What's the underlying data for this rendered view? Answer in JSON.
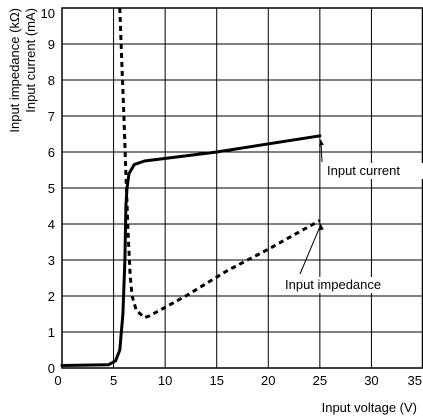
{
  "chart_data": {
    "type": "line",
    "title": "",
    "xlabel": "Input voltage (V)",
    "ylabel_lines": [
      "Input impedance (kΩ)",
      "Input current (mA)"
    ],
    "xlim": [
      0,
      35
    ],
    "ylim": [
      0,
      10
    ],
    "x_ticks": [
      "0",
      "5",
      "10",
      "15",
      "20",
      "25",
      "30",
      "35"
    ],
    "y_ticks": [
      "0",
      "1",
      "2",
      "3",
      "4",
      "5",
      "6",
      "7",
      "8",
      "9",
      "10"
    ],
    "grid": true,
    "series": [
      {
        "name": "Input current",
        "style": "solid",
        "color": "#000000",
        "x": [
          0,
          4.5,
          5.2,
          5.6,
          5.9,
          6.1,
          6.2,
          6.3,
          6.5,
          7.0,
          8.0,
          15,
          25
        ],
        "y": [
          0.07,
          0.09,
          0.2,
          0.5,
          1.5,
          3.0,
          4.5,
          5.0,
          5.4,
          5.65,
          5.75,
          6.0,
          6.45
        ]
      },
      {
        "name": "Input impedance",
        "style": "dashed",
        "color": "#000000",
        "x": [
          5.6,
          5.8,
          6.0,
          6.2,
          6.4,
          6.6,
          6.8,
          7.2,
          8.0,
          8.5,
          12,
          16,
          20,
          25
        ],
        "y": [
          10,
          8.5,
          7.0,
          5.4,
          3.8,
          2.6,
          2.0,
          1.6,
          1.4,
          1.45,
          2.0,
          2.7,
          3.3,
          4.1
        ]
      }
    ],
    "annotations": [
      {
        "text": "Input current",
        "series": "Input current",
        "point": [
          25,
          6.45
        ]
      },
      {
        "text": "Input impedance",
        "series": "Input impedance",
        "point": [
          25,
          4.1
        ]
      }
    ]
  }
}
